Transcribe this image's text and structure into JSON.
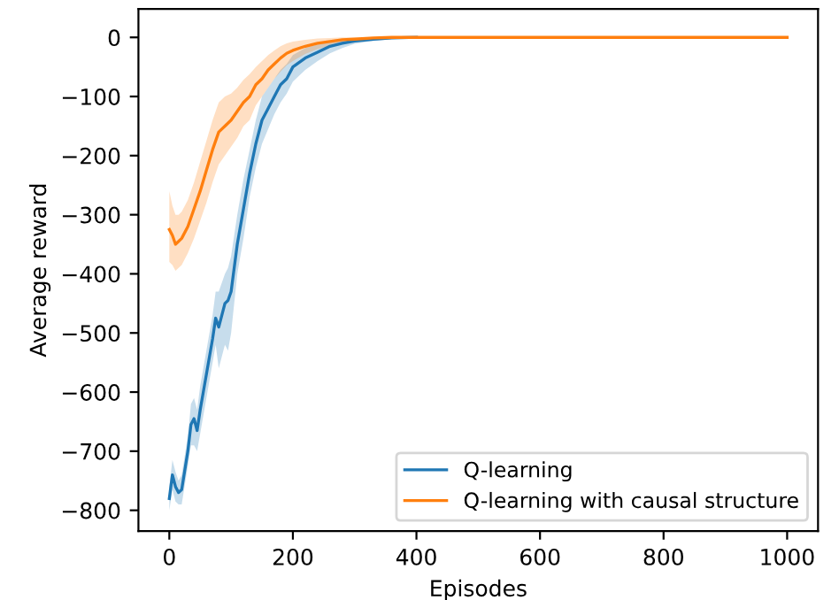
{
  "chart_data": {
    "type": "line",
    "xlabel": "Episodes",
    "ylabel": "Average reward",
    "xlim": [
      -50,
      1050
    ],
    "ylim": [
      -835,
      48
    ],
    "xticks": [
      0,
      200,
      400,
      600,
      800,
      1000
    ],
    "yticks": [
      {
        "value": 0,
        "label": "0"
      },
      {
        "value": -100,
        "label": "−100"
      },
      {
        "value": -200,
        "label": "−200"
      },
      {
        "value": -300,
        "label": "−300"
      },
      {
        "value": -400,
        "label": "−400"
      },
      {
        "value": -500,
        "label": "−500"
      },
      {
        "value": -600,
        "label": "−600"
      },
      {
        "value": -700,
        "label": "−700"
      },
      {
        "value": -800,
        "label": "−800"
      }
    ],
    "grid": false,
    "legend": "bottom right",
    "marker": "none",
    "line_style": "solid",
    "series": [
      {
        "name": "Q-learning",
        "color": "#1f77b4",
        "x": [
          0,
          5,
          10,
          15,
          20,
          30,
          35,
          40,
          45,
          50,
          60,
          70,
          75,
          80,
          90,
          95,
          100,
          110,
          120,
          130,
          140,
          150,
          160,
          170,
          180,
          190,
          200,
          220,
          240,
          260,
          280,
          300,
          330,
          360,
          400
        ],
        "values": [
          -780,
          -740,
          -760,
          -770,
          -765,
          -700,
          -655,
          -645,
          -665,
          -630,
          -570,
          -510,
          -475,
          -490,
          -450,
          -445,
          -430,
          -350,
          -290,
          -230,
          -180,
          -140,
          -120,
          -100,
          -80,
          -70,
          -50,
          -35,
          -25,
          -15,
          -10,
          -6,
          -3,
          -1,
          0
        ],
        "lower": [
          -800,
          -765,
          -785,
          -790,
          -790,
          -725,
          -690,
          -690,
          -700,
          -670,
          -610,
          -550,
          -520,
          -560,
          -520,
          -530,
          -500,
          -400,
          -340,
          -270,
          -220,
          -180,
          -155,
          -130,
          -110,
          -95,
          -75,
          -55,
          -40,
          -27,
          -18,
          -11,
          -6,
          -3,
          -1
        ],
        "upper": [
          -760,
          -715,
          -735,
          -750,
          -740,
          -675,
          -620,
          -610,
          -630,
          -590,
          -530,
          -470,
          -430,
          -430,
          -400,
          -390,
          -370,
          -300,
          -240,
          -190,
          -140,
          -100,
          -85,
          -70,
          -55,
          -45,
          -30,
          -18,
          -12,
          -7,
          -4,
          -2,
          -1,
          0,
          0
        ]
      },
      {
        "name": "Q-learning with causal structure",
        "color": "#ff7f0e",
        "x": [
          0,
          5,
          10,
          15,
          20,
          30,
          40,
          50,
          60,
          70,
          80,
          90,
          100,
          110,
          120,
          130,
          140,
          150,
          160,
          170,
          180,
          190,
          200,
          220,
          240,
          260,
          280,
          300,
          330,
          360,
          400,
          500,
          600,
          700,
          800,
          900,
          1000
        ],
        "values": [
          -325,
          -335,
          -350,
          -345,
          -340,
          -320,
          -290,
          -260,
          -225,
          -190,
          -160,
          -150,
          -140,
          -125,
          -110,
          -100,
          -80,
          -70,
          -55,
          -45,
          -35,
          -27,
          -22,
          -15,
          -10,
          -7,
          -4,
          -3,
          -1,
          0,
          0,
          0,
          0,
          0,
          0,
          0,
          0
        ],
        "lower": [
          -380,
          -385,
          -395,
          -390,
          -385,
          -365,
          -340,
          -310,
          -280,
          -245,
          -215,
          -200,
          -185,
          -170,
          -150,
          -140,
          -115,
          -100,
          -85,
          -70,
          -58,
          -47,
          -40,
          -28,
          -20,
          -14,
          -9,
          -6,
          -3,
          -1,
          0,
          0,
          0,
          0,
          0,
          0,
          0
        ],
        "upper": [
          -260,
          -285,
          -300,
          -300,
          -295,
          -275,
          -245,
          -210,
          -175,
          -140,
          -110,
          -100,
          -95,
          -85,
          -72,
          -62,
          -50,
          -40,
          -30,
          -22,
          -15,
          -10,
          -7,
          -4,
          -2,
          -1,
          0,
          0,
          0,
          0,
          0,
          0,
          0,
          0,
          0,
          0,
          0
        ]
      }
    ]
  }
}
